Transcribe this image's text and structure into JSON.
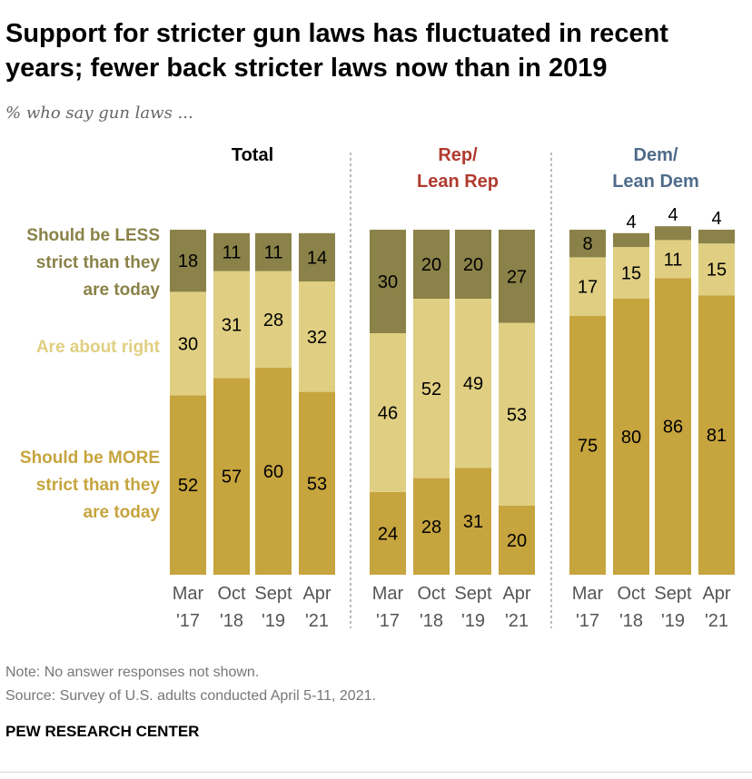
{
  "title": "Support for stricter gun laws has fluctuated in recent years; fewer back stricter laws now than in 2019",
  "subtitle": "% who say gun laws ...",
  "note": "Note: No answer responses not shown.",
  "source": "Source: Survey of U.S. adults conducted April 5-11, 2021.",
  "brand": "PEW RESEARCH CENTER",
  "colors": {
    "less": "#8a8248",
    "about_right": "#e0cf82",
    "more": "#c6a43e",
    "less_label": "#8a8248",
    "about_label": "#e0cf82",
    "more_label": "#c6a43e",
    "rep": "#b03a2e",
    "dem": "#4f6b8a"
  },
  "chart_data": {
    "type": "bar",
    "stacked": true,
    "ylim": [
      0,
      100
    ],
    "legend_lines": {
      "less": [
        "Should be LESS",
        "strict than they",
        "are today"
      ],
      "about_right": [
        "Are about right"
      ],
      "more": [
        "Should be MORE",
        "strict than they",
        "are today"
      ]
    },
    "tick_labels": [
      [
        "Mar",
        "'17"
      ],
      [
        "Oct",
        "'18"
      ],
      [
        "Sept",
        "'19"
      ],
      [
        "Apr",
        "'21"
      ]
    ],
    "categories": [
      "Mar '17",
      "Oct '18",
      "Sept '19",
      "Apr '21"
    ],
    "panels": [
      {
        "group": "Total",
        "title_lines": [
          "Total"
        ],
        "series": [
          {
            "name": "Should be MORE strict than they are today",
            "key": "more",
            "values": [
              52,
              57,
              60,
              53
            ]
          },
          {
            "name": "Are about right",
            "key": "about_right",
            "values": [
              30,
              31,
              28,
              32
            ]
          },
          {
            "name": "Should be LESS strict than they are today",
            "key": "less",
            "values": [
              18,
              11,
              11,
              14
            ]
          }
        ]
      },
      {
        "group": "Rep/Lean Rep",
        "title_lines": [
          "Rep/",
          "Lean Rep"
        ],
        "series": [
          {
            "name": "Should be MORE strict than they are today",
            "key": "more",
            "values": [
              24,
              28,
              31,
              20
            ]
          },
          {
            "name": "Are about right",
            "key": "about_right",
            "values": [
              46,
              52,
              49,
              53
            ]
          },
          {
            "name": "Should be LESS strict than they are today",
            "key": "less",
            "values": [
              30,
              20,
              20,
              27
            ]
          }
        ]
      },
      {
        "group": "Dem/Lean Dem",
        "title_lines": [
          "Dem/",
          "Lean Dem"
        ],
        "series": [
          {
            "name": "Should be MORE strict than they are today",
            "key": "more",
            "values": [
              75,
              80,
              86,
              81
            ]
          },
          {
            "name": "Are about right",
            "key": "about_right",
            "values": [
              17,
              15,
              11,
              15
            ]
          },
          {
            "name": "Should be LESS strict than they are today",
            "key": "less",
            "values": [
              8,
              4,
              4,
              4
            ]
          }
        ]
      }
    ]
  }
}
